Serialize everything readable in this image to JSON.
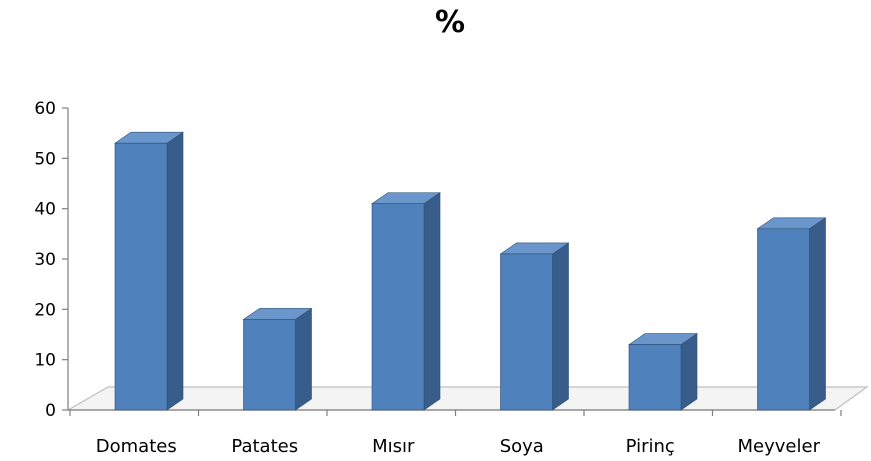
{
  "chart_data": {
    "type": "bar",
    "title": "%",
    "categories": [
      "Domates",
      "Patates",
      "Mısır",
      "Soya",
      "Pirinç",
      "Meyveler"
    ],
    "values": [
      53,
      18,
      41,
      31,
      13,
      36
    ],
    "ylim": [
      0,
      60
    ],
    "yticks": [
      "0",
      "10",
      "20",
      "30",
      "40",
      "50",
      "60"
    ],
    "grid": false,
    "legend": "none",
    "style": "3d-column",
    "colors": {
      "front": "#4F81BD",
      "side": "#385D8A",
      "top": "#6A96CC",
      "floor": "#BFBFBF"
    }
  }
}
